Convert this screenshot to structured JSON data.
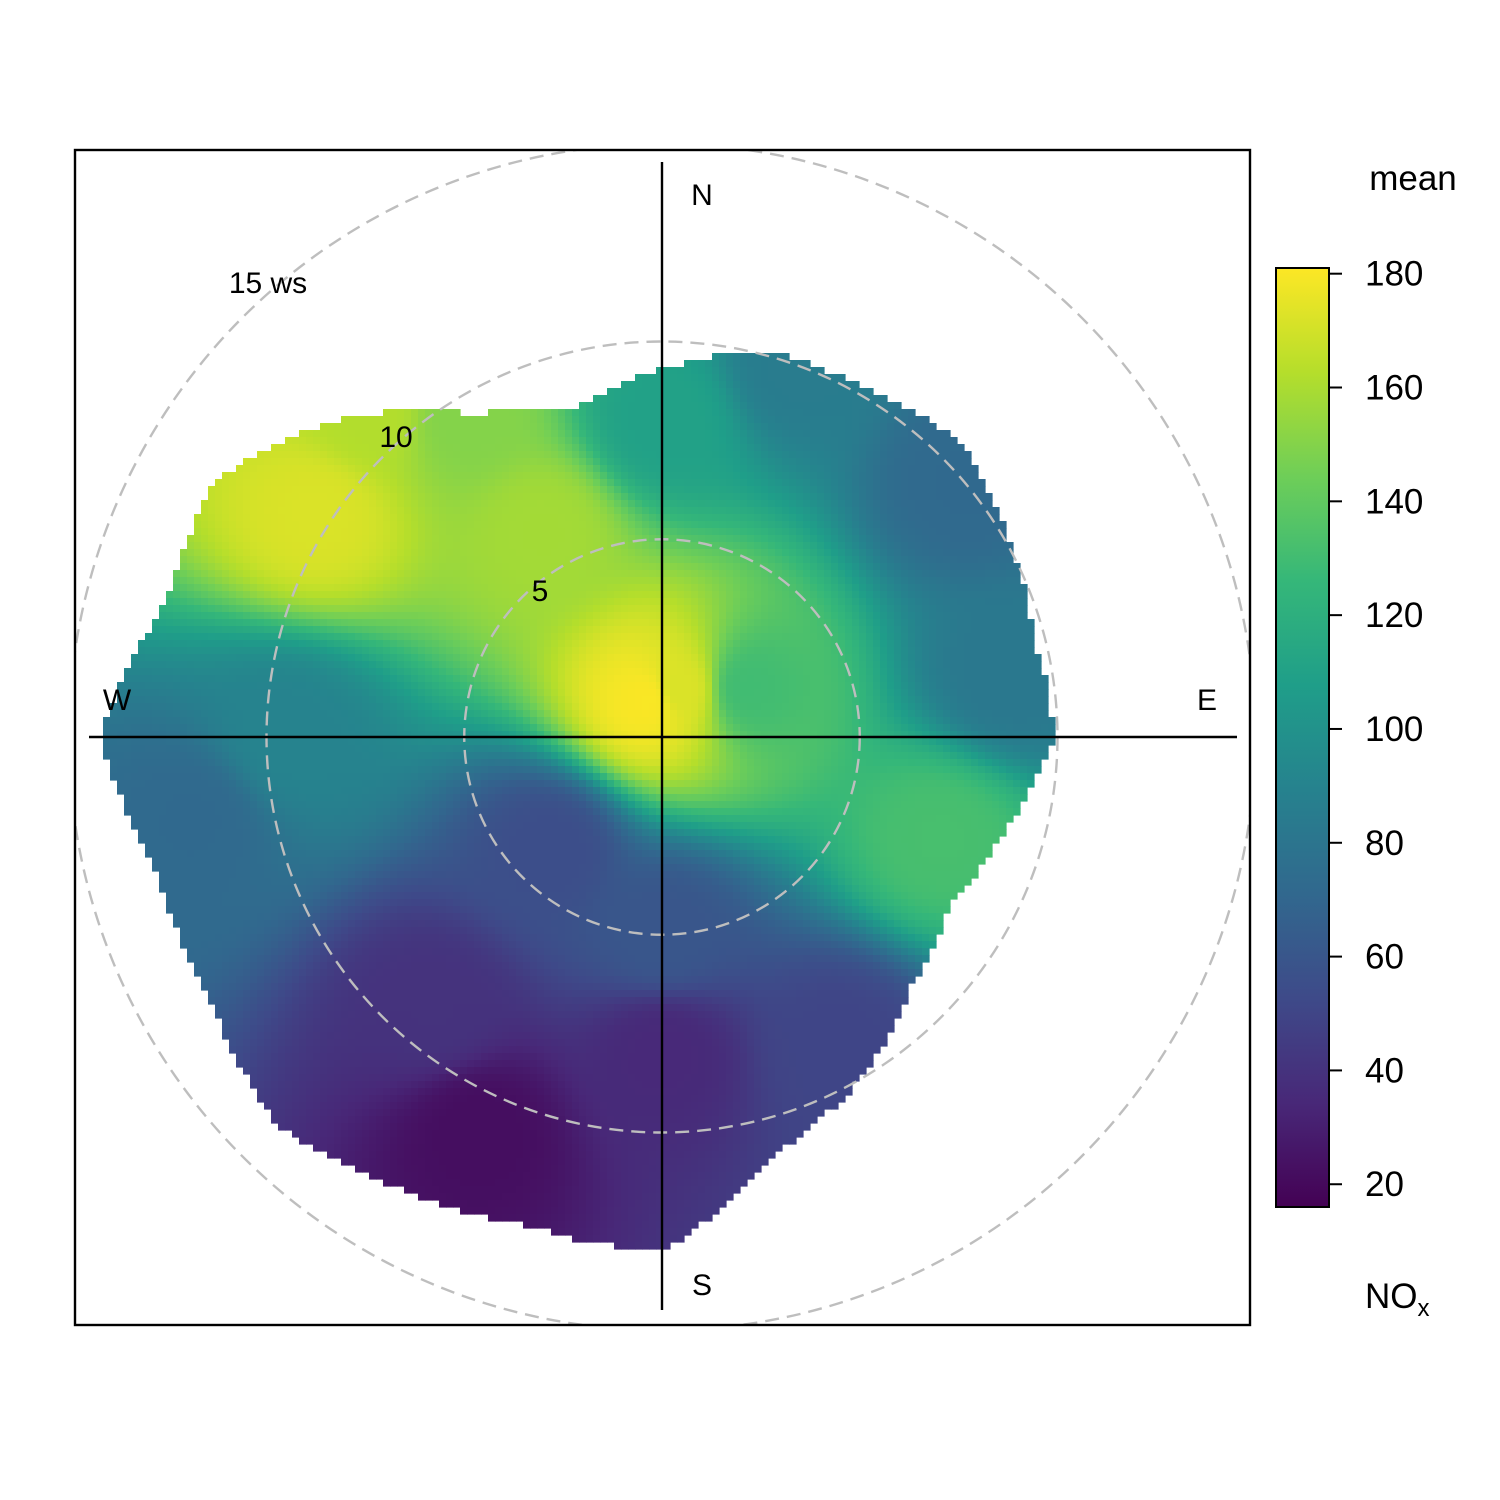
{
  "chart_data": {
    "type": "heatmap",
    "subtype": "polar",
    "title": "",
    "compass": {
      "north": "N",
      "east": "E",
      "south": "S",
      "west": "W"
    },
    "radial_axis": {
      "variable": "ws",
      "ticks": [
        5,
        10,
        15
      ],
      "tick_labels": [
        "5",
        "10",
        "15 ws"
      ],
      "range": [
        0,
        15
      ]
    },
    "colorbar": {
      "title": "mean",
      "pollutant": {
        "main": "NO",
        "sub": "x"
      },
      "range": [
        16,
        181
      ],
      "ticks": [
        20,
        40,
        60,
        80,
        100,
        120,
        140,
        160,
        180
      ],
      "palette": "viridis",
      "colors": [
        "#440154",
        "#482878",
        "#3e4a89",
        "#31688e",
        "#26828e",
        "#1f9e89",
        "#35b779",
        "#6ece58",
        "#b5de2b",
        "#fde725"
      ]
    },
    "surface_points": [
      {
        "ws": 1.0,
        "dir_deg": 340,
        "value": 180
      },
      {
        "ws": 1.3,
        "dir_deg": 20,
        "value": 172
      },
      {
        "ws": 2.5,
        "dir_deg": 60,
        "value": 130
      },
      {
        "ws": 6.0,
        "dir_deg": 330,
        "value": 158
      },
      {
        "ws": 10.4,
        "dir_deg": 303,
        "value": 172
      },
      {
        "ws": 9.5,
        "dir_deg": 328,
        "value": 150
      },
      {
        "ws": 11.0,
        "dir_deg": 318,
        "value": 162
      },
      {
        "ws": 8.0,
        "dir_deg": 0,
        "value": 110
      },
      {
        "ws": 10.0,
        "dir_deg": 20,
        "value": 85
      },
      {
        "ws": 10.0,
        "dir_deg": 50,
        "value": 72
      },
      {
        "ws": 9.0,
        "dir_deg": 80,
        "value": 82
      },
      {
        "ws": 7.5,
        "dir_deg": 110,
        "value": 132
      },
      {
        "ws": 9.5,
        "dir_deg": 270,
        "value": 90
      },
      {
        "ws": 12.0,
        "dir_deg": 260,
        "value": 72
      },
      {
        "ws": 4.0,
        "dir_deg": 225,
        "value": 55
      },
      {
        "ws": 9.0,
        "dir_deg": 220,
        "value": 40
      },
      {
        "ws": 11.0,
        "dir_deg": 205,
        "value": 22
      },
      {
        "ws": 8.0,
        "dir_deg": 180,
        "value": 35
      },
      {
        "ws": 5.0,
        "dir_deg": 180,
        "value": 60
      },
      {
        "ws": 9.0,
        "dir_deg": 150,
        "value": 50
      }
    ],
    "data_extent_ws_by_dir": [
      {
        "dir_deg": 0,
        "ws": 9.3
      },
      {
        "dir_deg": 15,
        "ws": 10.1
      },
      {
        "dir_deg": 30,
        "ws": 10.2
      },
      {
        "ws": 10.6,
        "dir_deg": 45
      },
      {
        "dir_deg": 60,
        "ws": 10.1
      },
      {
        "dir_deg": 75,
        "ws": 9.7
      },
      {
        "dir_deg": 90,
        "ws": 9.9
      },
      {
        "dir_deg": 105,
        "ws": 9.0
      },
      {
        "dir_deg": 120,
        "ws": 8.4
      },
      {
        "dir_deg": 135,
        "ws": 8.9
      },
      {
        "dir_deg": 150,
        "ws": 10.0
      },
      {
        "dir_deg": 165,
        "ws": 10.9
      },
      {
        "dir_deg": 180,
        "ws": 13.0
      },
      {
        "dir_deg": 195,
        "ws": 12.8
      },
      {
        "dir_deg": 210,
        "ws": 13.2
      },
      {
        "dir_deg": 225,
        "ws": 13.8
      },
      {
        "dir_deg": 240,
        "ws": 13.2
      },
      {
        "dir_deg": 255,
        "ws": 13.2
      },
      {
        "dir_deg": 270,
        "ws": 14.2
      },
      {
        "dir_deg": 285,
        "ws": 13.0
      },
      {
        "dir_deg": 300,
        "ws": 13.0
      },
      {
        "dir_deg": 315,
        "ws": 11.4
      },
      {
        "dir_deg": 330,
        "ws": 9.4
      },
      {
        "dir_deg": 345,
        "ws": 8.6
      }
    ]
  }
}
